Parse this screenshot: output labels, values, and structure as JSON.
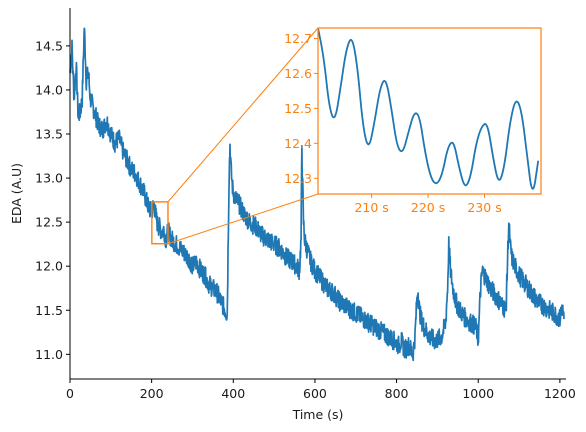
{
  "chart_data": [
    {
      "type": "line",
      "xlabel": "Time (s)",
      "ylabel": "EDA (A.U)",
      "xlim": [
        0,
        1215
      ],
      "ylim": [
        10.72,
        14.93
      ],
      "xticks": [
        0,
        200,
        400,
        600,
        800,
        1000,
        1200
      ],
      "yticks": [
        11.0,
        11.5,
        12.0,
        12.5,
        13.0,
        13.5,
        14.0,
        14.5
      ],
      "grid": false,
      "series": [
        {
          "color": "#1f77b4",
          "x": [
            0,
            5,
            10,
            15,
            20,
            25,
            30,
            35,
            40,
            45,
            50,
            60,
            70,
            80,
            90,
            100,
            110,
            120,
            130,
            140,
            150,
            160,
            170,
            180,
            190,
            200,
            205,
            210,
            215,
            220,
            225,
            230,
            235,
            240,
            250,
            260,
            270,
            280,
            290,
            300,
            310,
            320,
            330,
            340,
            350,
            360,
            370,
            380,
            385,
            390,
            392,
            395,
            398,
            402,
            408,
            415,
            425,
            440,
            455,
            470,
            485,
            500,
            515,
            530,
            545,
            555,
            562,
            566,
            568,
            570,
            572,
            575,
            580,
            590,
            600,
            615,
            630,
            645,
            660,
            675,
            690,
            705,
            720,
            735,
            750,
            765,
            780,
            795,
            805,
            812,
            820,
            830,
            840,
            845,
            849,
            852,
            856,
            860,
            868,
            880,
            895,
            910,
            920,
            925,
            928,
            932,
            938,
            945,
            955,
            970,
            985,
            995,
            1000,
            1005,
            1010,
            1020,
            1030,
            1045,
            1060,
            1068,
            1072,
            1075,
            1078,
            1082,
            1090,
            1100,
            1115,
            1130,
            1145,
            1160,
            1175,
            1190,
            1200,
            1205,
            1210
          ],
          "y": [
            14.2,
            14.48,
            13.9,
            14.3,
            13.7,
            13.75,
            13.9,
            14.72,
            14.1,
            14.2,
            13.9,
            13.75,
            13.6,
            13.55,
            13.65,
            13.5,
            13.4,
            13.45,
            13.3,
            13.2,
            13.1,
            13.05,
            12.95,
            12.85,
            12.7,
            12.6,
            12.72,
            12.58,
            12.46,
            12.44,
            12.38,
            12.42,
            12.3,
            12.4,
            12.3,
            12.25,
            12.2,
            12.15,
            12.1,
            12.0,
            12.05,
            11.95,
            11.9,
            11.8,
            11.75,
            11.7,
            11.6,
            11.5,
            11.45,
            13.1,
            13.38,
            13.05,
            12.9,
            12.8,
            12.75,
            12.7,
            12.6,
            12.5,
            12.45,
            12.35,
            12.3,
            12.25,
            12.2,
            12.1,
            12.05,
            12.0,
            11.95,
            12.3,
            13.38,
            12.9,
            12.5,
            12.3,
            12.2,
            12.05,
            11.95,
            11.85,
            11.75,
            11.7,
            11.6,
            11.55,
            11.5,
            11.45,
            11.4,
            11.35,
            11.3,
            11.25,
            11.2,
            11.15,
            11.1,
            11.15,
            11.05,
            11.1,
            11.0,
            11.2,
            11.55,
            11.75,
            11.5,
            11.4,
            11.3,
            11.2,
            11.15,
            11.2,
            11.35,
            11.75,
            12.25,
            11.95,
            11.75,
            11.6,
            11.5,
            11.4,
            11.35,
            11.3,
            11.15,
            11.7,
            11.95,
            11.85,
            11.75,
            11.65,
            11.55,
            11.5,
            12.1,
            12.5,
            12.25,
            12.1,
            12.0,
            11.9,
            11.8,
            11.7,
            11.6,
            11.55,
            11.5,
            11.45,
            11.4,
            11.55,
            11.4
          ]
        }
      ]
    },
    {
      "type": "line",
      "xlabel": "",
      "ylabel": "",
      "xlim": [
        200.5,
        240
      ],
      "ylim": [
        12.255,
        12.73
      ],
      "xticks": [
        210,
        220,
        230
      ],
      "xtick_labels": [
        "210 s",
        "220 s",
        "230 s"
      ],
      "yticks": [
        12.3,
        12.4,
        12.5,
        12.6,
        12.7
      ],
      "ytick_labels": [
        "12.3",
        "12.4",
        "12.5",
        "12.6",
        "12.7"
      ],
      "grid": false,
      "series": [
        {
          "color": "#1f77b4",
          "x": [
            200.5,
            201.5,
            202.5,
            203.5,
            204.5,
            205.5,
            206.5,
            207.5,
            208.5,
            209.5,
            210.5,
            211.5,
            212.5,
            213.5,
            214.5,
            215.5,
            216.5,
            217.5,
            218.5,
            219.5,
            220.5,
            221.5,
            222.5,
            223.5,
            224.5,
            225.5,
            226.5,
            227.5,
            228.5,
            229.5,
            230.5,
            231.5,
            232.5,
            233.5,
            234.5,
            235.5,
            236.5,
            237.5,
            238.5,
            239.5
          ],
          "y": [
            12.73,
            12.65,
            12.5,
            12.46,
            12.56,
            12.67,
            12.71,
            12.62,
            12.44,
            12.38,
            12.46,
            12.56,
            12.59,
            12.5,
            12.39,
            12.37,
            12.43,
            12.49,
            12.48,
            12.37,
            12.3,
            12.28,
            12.31,
            12.39,
            12.41,
            12.33,
            12.27,
            12.3,
            12.4,
            12.45,
            12.46,
            12.36,
            12.28,
            12.33,
            12.46,
            12.53,
            12.5,
            12.37,
            12.24,
            12.35
          ]
        }
      ]
    }
  ],
  "zoom_box": {
    "x0": 200.5,
    "x1": 240,
    "y0": 12.255,
    "y1": 12.73
  },
  "colors": {
    "line": "#1f77b4",
    "accent": "#ff7f0e",
    "axis": "#000000"
  }
}
